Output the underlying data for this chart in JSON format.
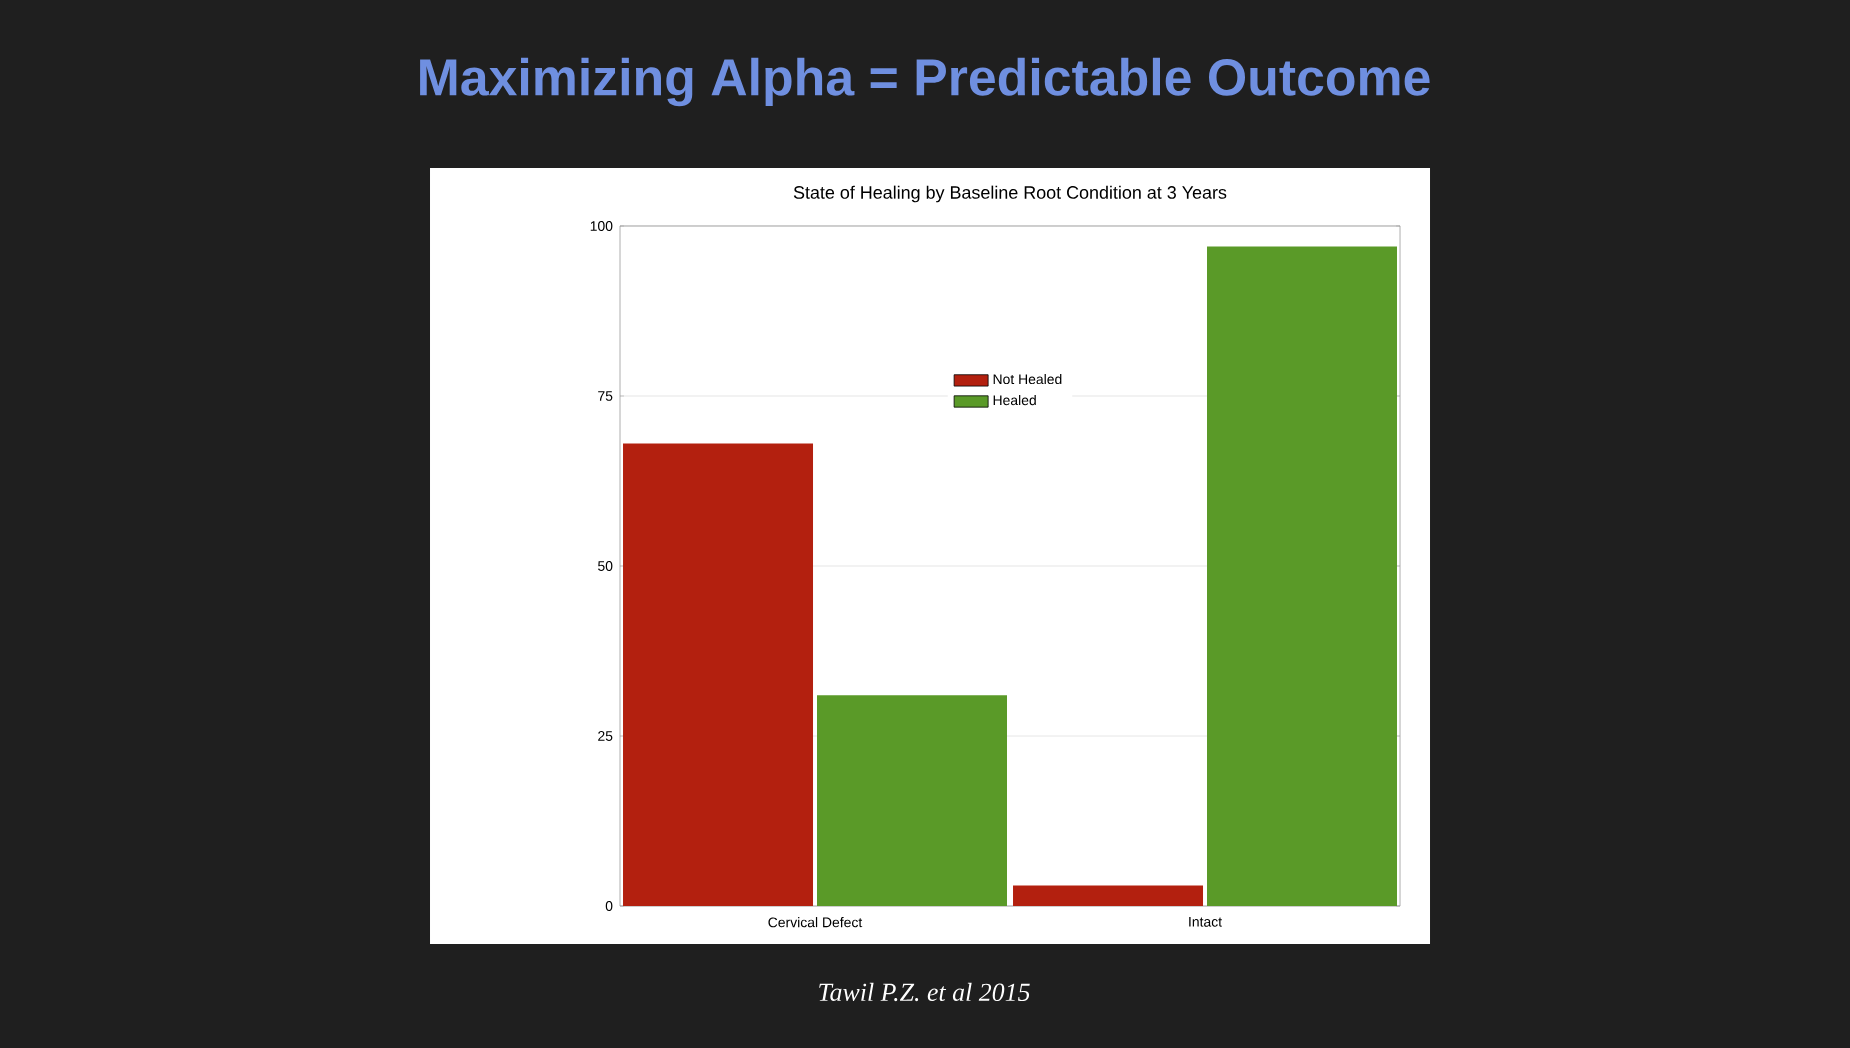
{
  "chart_data": {
    "type": "bar",
    "title": "Maximizing Alpha = Predictable Outcome",
    "subtitle": "State of Healing by Baseline Root Condition at 3 Years",
    "annotations": [
      "Tawil P.Z. et al 2015"
    ],
    "categories": [
      "Cervical Defect",
      "Intact"
    ],
    "series": [
      {
        "name": "Not Healed",
        "color": "#b3200f",
        "values": [
          68,
          3
        ]
      },
      {
        "name": "Healed",
        "color": "#5a9a28",
        "values": [
          31,
          97
        ]
      }
    ],
    "ylim": [
      0,
      100
    ],
    "yticks": [
      0,
      25,
      50,
      75,
      100
    ],
    "grid": "y",
    "legend": "top"
  }
}
